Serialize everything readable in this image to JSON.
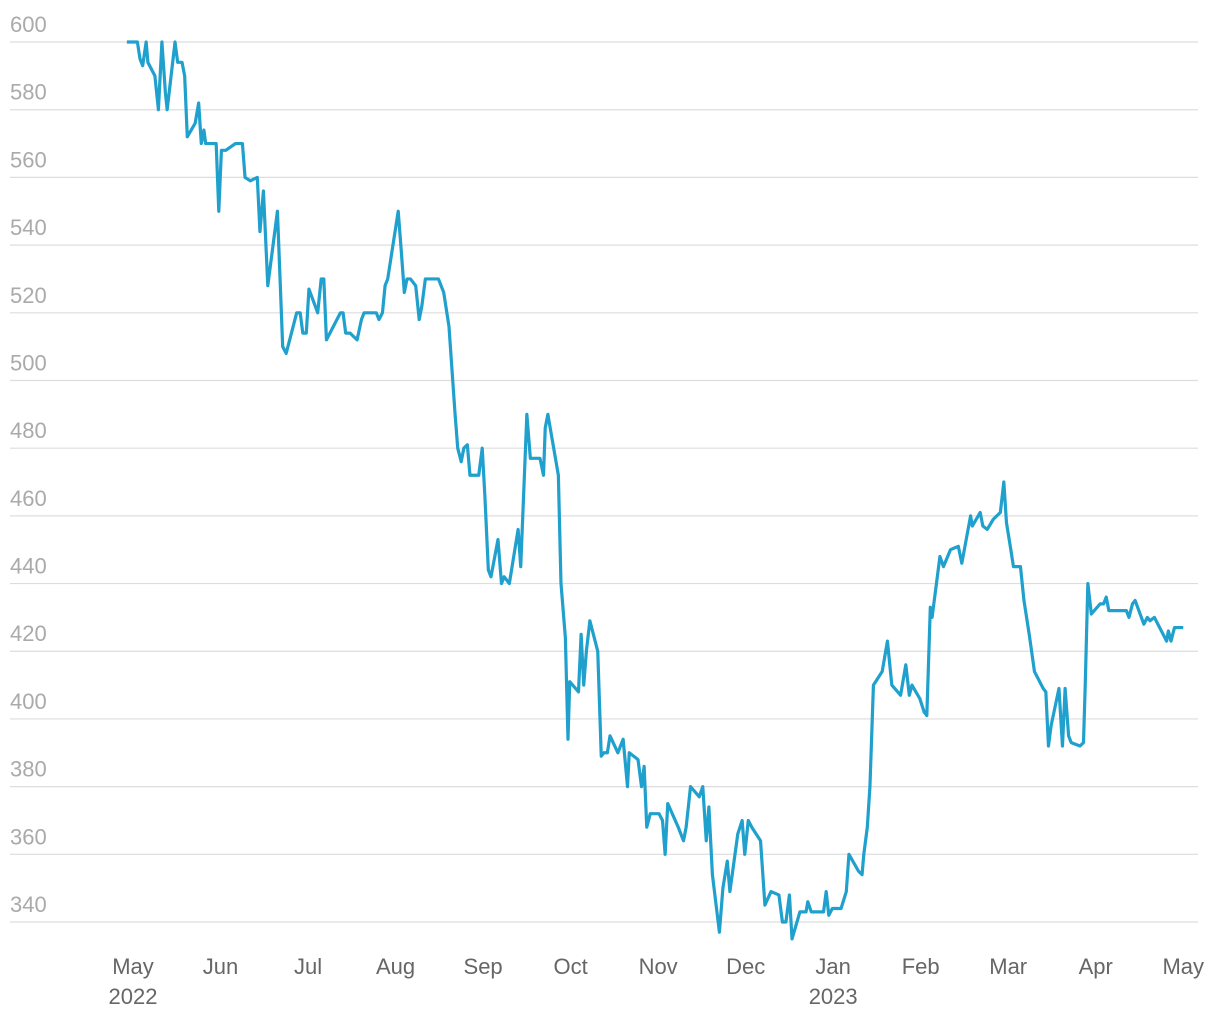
{
  "chart_data": {
    "type": "line",
    "x": [
      -0.07,
      0.05,
      0.08,
      0.11,
      0.15,
      0.17,
      0.25,
      0.29,
      0.31,
      0.33,
      0.37,
      0.39,
      0.48,
      0.51,
      0.56,
      0.59,
      0.62,
      0.71,
      0.75,
      0.78,
      0.81,
      0.83,
      0.95,
      0.98,
      1.01,
      1.06,
      1.17,
      1.25,
      1.28,
      1.34,
      1.42,
      1.45,
      1.49,
      1.54,
      1.65,
      1.68,
      1.71,
      1.75,
      1.87,
      1.91,
      1.94,
      1.98,
      2.01,
      2.11,
      2.15,
      2.18,
      2.21,
      2.37,
      2.4,
      2.43,
      2.48,
      2.56,
      2.61,
      2.64,
      2.78,
      2.81,
      2.85,
      2.88,
      2.91,
      3.03,
      3.06,
      3.1,
      3.13,
      3.17,
      3.23,
      3.27,
      3.3,
      3.34,
      3.49,
      3.55,
      3.61,
      3.68,
      3.71,
      3.75,
      3.78,
      3.82,
      3.85,
      3.95,
      3.99,
      4.02,
      4.06,
      4.09,
      4.17,
      4.21,
      4.24,
      4.3,
      4.4,
      4.43,
      4.5,
      4.54,
      4.65,
      4.69,
      4.71,
      4.74,
      4.86,
      4.89,
      4.94,
      4.97,
      4.99,
      5.09,
      5.12,
      5.15,
      5.18,
      5.22,
      5.31,
      5.35,
      5.38,
      5.42,
      5.45,
      5.54,
      5.6,
      5.65,
      5.67,
      5.77,
      5.81,
      5.84,
      5.87,
      5.91,
      6.01,
      6.05,
      6.08,
      6.11,
      6.23,
      6.29,
      6.32,
      6.37,
      6.47,
      6.51,
      6.55,
      6.58,
      6.62,
      6.7,
      6.74,
      6.79,
      6.82,
      6.91,
      6.96,
      6.99,
      7.03,
      7.07,
      7.17,
      7.22,
      7.29,
      7.38,
      7.42,
      7.46,
      7.5,
      7.53,
      7.62,
      7.66,
      7.69,
      7.71,
      7.75,
      7.89,
      7.92,
      7.95,
      7.99,
      8.09,
      8.15,
      8.18,
      8.29,
      8.33,
      8.35,
      8.39,
      8.42,
      8.46,
      8.56,
      8.62,
      8.67,
      8.77,
      8.83,
      8.87,
      8.9,
      8.99,
      9.04,
      9.07,
      9.11,
      9.13,
      9.22,
      9.26,
      9.34,
      9.43,
      9.47,
      9.57,
      9.59,
      9.68,
      9.71,
      9.76,
      9.83,
      9.91,
      9.95,
      9.98,
      10.03,
      10.06,
      10.14,
      10.18,
      10.24,
      10.3,
      10.4,
      10.43,
      10.46,
      10.49,
      10.58,
      10.62,
      10.65,
      10.69,
      10.72,
      10.82,
      10.86,
      10.88,
      10.91,
      10.95,
      11.05,
      11.09,
      11.12,
      11.15,
      11.29,
      11.35,
      11.38,
      11.42,
      11.45,
      11.55,
      11.59,
      11.62,
      11.67,
      11.77,
      11.81,
      11.83,
      11.86,
      11.9,
      12.0
    ],
    "series": [
      {
        "color": "#1fa0cd",
        "values": [
          600,
          600,
          595,
          593,
          600,
          594,
          590,
          580,
          590,
          600,
          585,
          580,
          600,
          594,
          594,
          590,
          572,
          576,
          582,
          570,
          574,
          570,
          570,
          550,
          568,
          568,
          570,
          570,
          560,
          559,
          560,
          544,
          556,
          528,
          550,
          530,
          510,
          508,
          520,
          520,
          514,
          514,
          527,
          520,
          530,
          530,
          512,
          520,
          520,
          514,
          514,
          512,
          518,
          520,
          520,
          518,
          520,
          528,
          530,
          550,
          540,
          526,
          530,
          530,
          528,
          518,
          522,
          530,
          530,
          526,
          516,
          490,
          480,
          476,
          480,
          481,
          472,
          472,
          480,
          466,
          444,
          442,
          453,
          440,
          442,
          440,
          456,
          445,
          490,
          477,
          477,
          472,
          486,
          490,
          472,
          440,
          424,
          394,
          411,
          408,
          425,
          410,
          420,
          429,
          420,
          389,
          390,
          390,
          395,
          390,
          394,
          380,
          390,
          388,
          380,
          386,
          368,
          372,
          372,
          370,
          360,
          375,
          368,
          364,
          368,
          380,
          377,
          380,
          364,
          374,
          354,
          337,
          350,
          358,
          349,
          366,
          370,
          360,
          370,
          368,
          364,
          345,
          349,
          348,
          340,
          340,
          348,
          335,
          343,
          343,
          343,
          346,
          343,
          343,
          349,
          342,
          344,
          344,
          349,
          360,
          355,
          354,
          360,
          368,
          380,
          410,
          414,
          423,
          410,
          407,
          416,
          407,
          410,
          406,
          402,
          401,
          433,
          430,
          448,
          445,
          450,
          451,
          446,
          460,
          457,
          461,
          457,
          456,
          459,
          461,
          470,
          458,
          450,
          445,
          445,
          435,
          425,
          414,
          409,
          408,
          392,
          398,
          409,
          392,
          409,
          395,
          393,
          392,
          393,
          410,
          440,
          431,
          434,
          434,
          436,
          432,
          432,
          432,
          430,
          434,
          435,
          428,
          430,
          429,
          430,
          425,
          423,
          426,
          423,
          427,
          427
        ]
      }
    ],
    "xlim": [
      -1.3,
      12.2
    ],
    "xticks": [
      {
        "value": 0,
        "label": "May",
        "year": "2022"
      },
      {
        "value": 1,
        "label": "Jun"
      },
      {
        "value": 2,
        "label": "Jul"
      },
      {
        "value": 3,
        "label": "Aug"
      },
      {
        "value": 4,
        "label": "Sep"
      },
      {
        "value": 5,
        "label": "Oct"
      },
      {
        "value": 6,
        "label": "Nov"
      },
      {
        "value": 7,
        "label": "Dec"
      },
      {
        "value": 8,
        "label": "Jan",
        "year": "2023"
      },
      {
        "value": 9,
        "label": "Feb"
      },
      {
        "value": 10,
        "label": "Mar"
      },
      {
        "value": 11,
        "label": "Apr"
      },
      {
        "value": 12,
        "label": "May"
      }
    ],
    "ylim": [
      333,
      605
    ],
    "yticks": [
      340,
      360,
      380,
      400,
      420,
      440,
      460,
      480,
      500,
      520,
      540,
      560,
      580,
      600
    ],
    "grid": true
  }
}
